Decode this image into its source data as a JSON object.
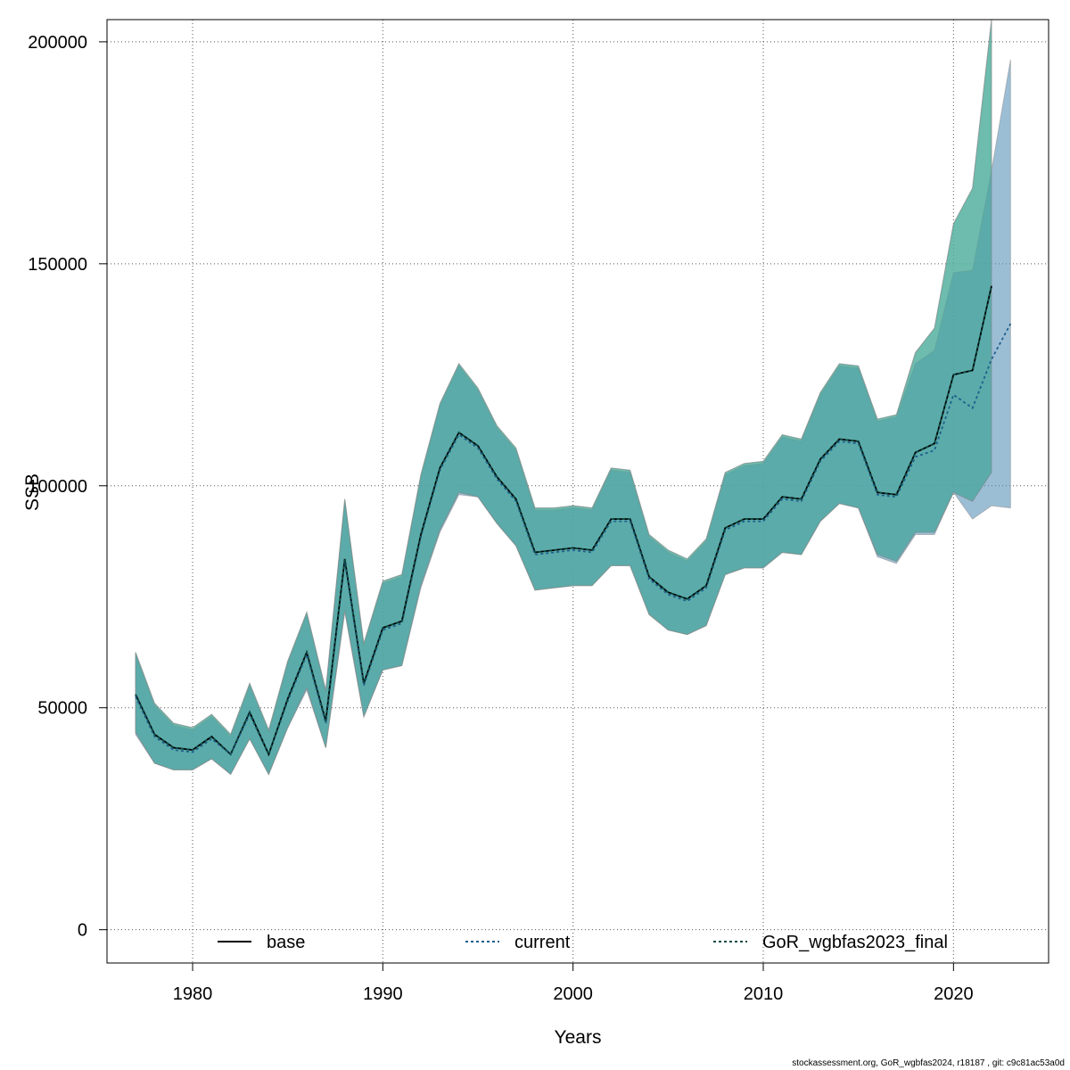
{
  "footer": "stockassessment.org, GoR_wgbfas2024, r18187 , git: c9c81ac53a0d",
  "chart_data": {
    "type": "line",
    "xlabel": "Years",
    "ylabel": "SSB",
    "xlim": [
      1975.5,
      2025
    ],
    "ylim": [
      -7500,
      205000
    ],
    "xticks": [
      1980,
      1990,
      2000,
      2010,
      2020
    ],
    "yticks": [
      0,
      50000,
      100000,
      150000,
      200000
    ],
    "grid": true,
    "legend_position": "bottom",
    "legend": [
      {
        "name": "base",
        "style": "solid",
        "color": "#000000"
      },
      {
        "name": "current",
        "style": "dotted",
        "color": "#1f5f8b"
      },
      {
        "name": "GoR_wgbfas2023_final",
        "style": "dotted",
        "color": "#0d4d46"
      }
    ],
    "series": [
      {
        "name": "base",
        "band_color": "#66c2a5",
        "x": [
          1977,
          1978,
          1979,
          1980,
          1981,
          1982,
          1983,
          1984,
          1985,
          1986,
          1987,
          1988,
          1989,
          1990,
          1991,
          1992,
          1993,
          1994,
          1995,
          1996,
          1997,
          1998,
          1999,
          2000,
          2001,
          2002,
          2003,
          2004,
          2005,
          2006,
          2007,
          2008,
          2009,
          2010,
          2011,
          2012,
          2013,
          2014,
          2015,
          2016,
          2017,
          2018,
          2019,
          2020,
          2021,
          2022
        ],
        "y": [
          53000,
          44000,
          41000,
          40500,
          43500,
          39500,
          49000,
          39500,
          52000,
          62500,
          47000,
          83500,
          55500,
          68000,
          69500,
          89000,
          104000,
          112000,
          109000,
          102000,
          97000,
          85000,
          85500,
          86000,
          85500,
          92500,
          92500,
          79500,
          76000,
          74500,
          77500,
          90500,
          92500,
          92500,
          97500,
          97000,
          106000,
          110500,
          110000,
          98500,
          98000,
          107500,
          109500,
          125000,
          126000,
          145000
        ],
        "lower": [
          44500,
          37500,
          36000,
          36000,
          38500,
          35000,
          43000,
          35000,
          45500,
          54500,
          41000,
          72000,
          48000,
          58500,
          59500,
          77500,
          90000,
          98500,
          97500,
          91500,
          86500,
          76500,
          77000,
          77500,
          77500,
          82000,
          82000,
          71000,
          67500,
          66500,
          68500,
          80000,
          81500,
          81500,
          85000,
          84500,
          92000,
          96000,
          95000,
          84500,
          83000,
          89500,
          89500,
          98500,
          96500,
          103000
        ],
        "upper": [
          62500,
          51000,
          46500,
          45500,
          48500,
          44000,
          55500,
          45000,
          60500,
          71500,
          54000,
          97000,
          64500,
          78500,
          80000,
          102500,
          118500,
          127500,
          122000,
          113500,
          108500,
          95000,
          95000,
          95500,
          95000,
          104000,
          103500,
          89000,
          85500,
          83500,
          88000,
          103000,
          105000,
          105500,
          111500,
          110500,
          121000,
          127500,
          127000,
          115000,
          116000,
          130000,
          135500,
          159000,
          167000,
          205000
        ]
      },
      {
        "name": "current",
        "band_color": "#5a93b9",
        "x": [
          1977,
          1978,
          1979,
          1980,
          1981,
          1982,
          1983,
          1984,
          1985,
          1986,
          1987,
          1988,
          1989,
          1990,
          1991,
          1992,
          1993,
          1994,
          1995,
          1996,
          1997,
          1998,
          1999,
          2000,
          2001,
          2002,
          2003,
          2004,
          2005,
          2006,
          2007,
          2008,
          2009,
          2010,
          2011,
          2012,
          2013,
          2014,
          2015,
          2016,
          2017,
          2018,
          2019,
          2020,
          2021,
          2022,
          2023
        ],
        "y": [
          52500,
          43500,
          40500,
          40000,
          43000,
          39500,
          48500,
          39500,
          51500,
          62000,
          46500,
          83000,
          55000,
          67500,
          69000,
          88500,
          103500,
          111500,
          108500,
          101500,
          96500,
          84500,
          85000,
          85500,
          85000,
          92000,
          92000,
          79000,
          75500,
          74000,
          77000,
          90000,
          92000,
          92000,
          97000,
          96500,
          105500,
          110000,
          109500,
          98000,
          97500,
          106500,
          108000,
          120500,
          117500,
          128500,
          136500
        ],
        "lower": [
          44000,
          37500,
          36000,
          36000,
          38500,
          35000,
          43000,
          35000,
          45500,
          54000,
          41000,
          71500,
          48000,
          58500,
          59500,
          77000,
          89500,
          98000,
          97500,
          91500,
          86500,
          76500,
          77000,
          77500,
          77500,
          82000,
          82000,
          71000,
          67500,
          66500,
          68500,
          80000,
          81500,
          81500,
          85000,
          84500,
          92000,
          96000,
          95000,
          84000,
          82500,
          89000,
          89000,
          98500,
          92500,
          95500,
          95000
        ],
        "upper": [
          62000,
          50500,
          46000,
          45000,
          48000,
          43500,
          55000,
          44500,
          60000,
          71000,
          53500,
          96500,
          64000,
          78000,
          79500,
          102000,
          118000,
          127000,
          121500,
          113000,
          108000,
          94500,
          94500,
          95000,
          94500,
          103500,
          103000,
          88500,
          85000,
          83000,
          87500,
          102500,
          104500,
          105000,
          111000,
          110000,
          120500,
          127000,
          126500,
          114500,
          115500,
          127500,
          130500,
          148000,
          148500,
          171000,
          196000
        ]
      },
      {
        "name": "GoR_wgbfas2023_final",
        "band_color": "#4aa89c",
        "x": [
          1977,
          1978,
          1979,
          1980,
          1981,
          1982,
          1983,
          1984,
          1985,
          1986,
          1987,
          1988,
          1989,
          1990,
          1991,
          1992,
          1993,
          1994,
          1995,
          1996,
          1997,
          1998,
          1999,
          2000,
          2001,
          2002,
          2003,
          2004,
          2005,
          2006,
          2007,
          2008,
          2009,
          2010,
          2011,
          2012,
          2013,
          2014,
          2015,
          2016,
          2017,
          2018,
          2019,
          2020,
          2021,
          2022
        ],
        "y": [
          53000,
          44000,
          41000,
          40500,
          43500,
          39500,
          49000,
          39500,
          52000,
          62500,
          47000,
          83500,
          55500,
          68000,
          69500,
          89000,
          104000,
          112000,
          109000,
          102000,
          97000,
          85000,
          85500,
          86000,
          85500,
          92500,
          92500,
          79500,
          76000,
          74500,
          77500,
          90500,
          92500,
          92500,
          97500,
          97000,
          106000,
          110500,
          110000,
          98500,
          98000,
          107500,
          109500,
          125000,
          126000,
          145000
        ],
        "lower": [
          44500,
          37500,
          36000,
          36000,
          38500,
          35000,
          43000,
          35000,
          45500,
          54500,
          41000,
          72000,
          48000,
          58500,
          59500,
          77500,
          90000,
          98500,
          97500,
          91500,
          86500,
          76500,
          77000,
          77500,
          77500,
          82000,
          82000,
          71000,
          67500,
          66500,
          68500,
          80000,
          81500,
          81500,
          85000,
          84500,
          92000,
          96000,
          95000,
          84500,
          83000,
          89500,
          89500,
          98500,
          96500,
          103000
        ],
        "upper": [
          62500,
          51000,
          46500,
          45500,
          48500,
          44000,
          55500,
          45000,
          60500,
          71500,
          54000,
          97000,
          64500,
          78500,
          80000,
          102500,
          118500,
          127500,
          122000,
          113500,
          108500,
          95000,
          95000,
          95500,
          95000,
          104000,
          103500,
          89000,
          85500,
          83500,
          88000,
          103000,
          105000,
          105500,
          111500,
          110500,
          121000,
          127500,
          127000,
          115000,
          116000,
          130000,
          135500,
          159000,
          167000,
          205000
        ]
      }
    ]
  }
}
